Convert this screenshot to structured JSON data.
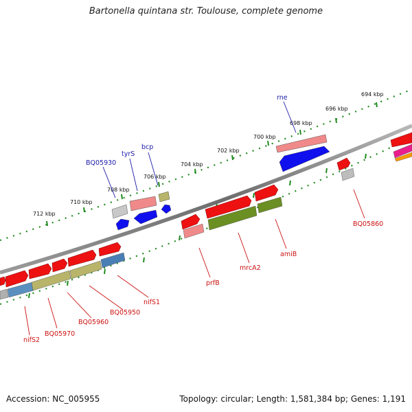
{
  "title": "Bartonella quintana str. Toulouse, complete genome",
  "footer": {
    "accession": "Accession: NC_005955",
    "summary": "Topology: circular; Length: 1,581,384 bp; Genes: 1,191"
  },
  "colors": {
    "backbone": "#8a8a8a",
    "ticks": "#1f8a1f",
    "label_above": "#1a1aa8",
    "label_below": "#cc1111"
  },
  "kbp_labels": [
    "694 kbp",
    "696 kbp",
    "698 kbp",
    "700 kbp",
    "702 kbp",
    "704 kbp",
    "706 kbp",
    "708 kbp",
    "710 kbp",
    "712 kbp"
  ],
  "gene_labels_above": [
    "rne",
    "tyrS",
    "bcp",
    "BQ05930"
  ],
  "gene_labels_below": [
    "BQ05860",
    "amiB",
    "mrcA2",
    "prfB",
    "nifS1",
    "BQ05950",
    "BQ05960",
    "BQ05970",
    "nifS2"
  ]
}
